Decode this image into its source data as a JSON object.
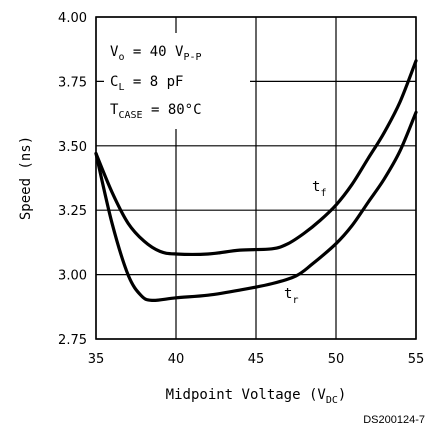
{
  "chart_data": {
    "type": "line",
    "xlabel": "Midpoint Voltage (V",
    "xlabel_sub": "DC",
    "xlabel_end": ")",
    "ylabel": "Speed (ns)",
    "xlim": [
      35,
      55
    ],
    "ylim": [
      2.75,
      4.0
    ],
    "x_ticks": [
      "35",
      "40",
      "45",
      "50",
      "55"
    ],
    "y_ticks": [
      "4.00",
      "3.75",
      "3.50",
      "3.25",
      "3.00",
      "2.75"
    ],
    "x_tick_values": [
      35,
      40,
      45,
      50,
      55
    ],
    "y_tick_values": [
      4.0,
      3.75,
      3.5,
      3.25,
      3.0,
      2.75
    ],
    "grid": true,
    "series": [
      {
        "name": "t",
        "name_sub": "f",
        "points": [
          [
            35,
            3.47
          ],
          [
            36,
            3.32
          ],
          [
            37,
            3.2
          ],
          [
            38,
            3.13
          ],
          [
            39,
            3.09
          ],
          [
            40,
            3.08
          ],
          [
            42,
            3.08
          ],
          [
            44,
            3.095
          ],
          [
            46,
            3.1
          ],
          [
            47,
            3.12
          ],
          [
            48,
            3.16
          ],
          [
            49,
            3.21
          ],
          [
            50,
            3.27
          ],
          [
            51,
            3.35
          ],
          [
            52,
            3.45
          ],
          [
            53,
            3.55
          ],
          [
            54,
            3.67
          ],
          [
            55,
            3.83
          ]
        ]
      },
      {
        "name": "t",
        "name_sub": "r",
        "points": [
          [
            35,
            3.47
          ],
          [
            36,
            3.2
          ],
          [
            37,
            3.0
          ],
          [
            37.8,
            2.92
          ],
          [
            38.5,
            2.9
          ],
          [
            40,
            2.91
          ],
          [
            42,
            2.92
          ],
          [
            44,
            2.94
          ],
          [
            46,
            2.965
          ],
          [
            47.5,
            2.995
          ],
          [
            48.5,
            3.04
          ],
          [
            50,
            3.12
          ],
          [
            51,
            3.19
          ],
          [
            52,
            3.28
          ],
          [
            53,
            3.37
          ],
          [
            54,
            3.48
          ],
          [
            55,
            3.63
          ]
        ]
      }
    ],
    "annotations": {
      "vo": {
        "a": "V",
        "a_sub": "o",
        "b": " = 40 V",
        "b_sub": "P-P"
      },
      "cl": {
        "a": "C",
        "a_sub": "L",
        "b": " = 8 pF"
      },
      "tcase": {
        "a": "T",
        "a_sub": "CASE",
        "b": " = 80°C"
      }
    }
  },
  "figure_code": "DS200124-7"
}
